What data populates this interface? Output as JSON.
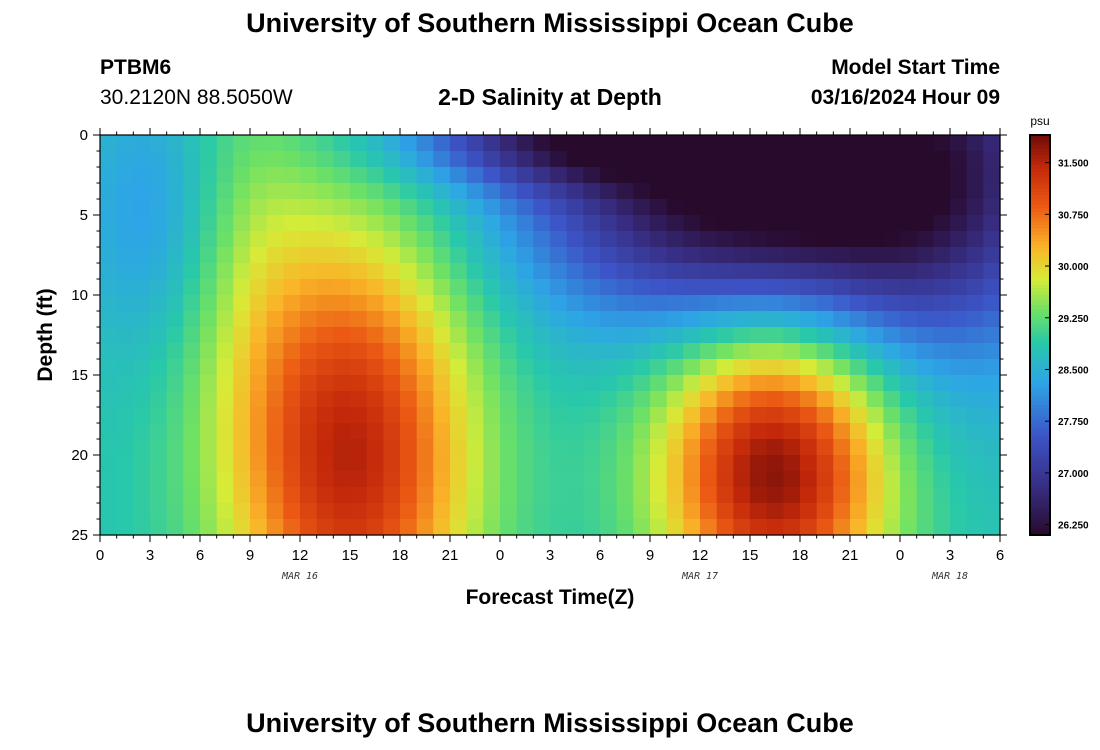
{
  "header": {
    "title": "University of Southern Mississippi Ocean Cube",
    "station_id": "PTBM6",
    "station_coords": "30.2120N  88.5050W",
    "plot_title": "2-D Salinity at Depth",
    "model_start_label": "Model Start Time",
    "model_start_value": "03/16/2024 Hour 09"
  },
  "footer": {
    "title": "University of Southern Mississippi Ocean Cube"
  },
  "chart_data": {
    "type": "heatmap",
    "title": "2-D Salinity at Depth",
    "xlabel": "Forecast Time(Z)",
    "ylabel": "Depth (ft)",
    "x_ticks": [
      "0",
      "3",
      "6",
      "9",
      "12",
      "15",
      "18",
      "21",
      "0",
      "3",
      "6",
      "9",
      "12",
      "15",
      "18",
      "21",
      "0",
      "3",
      "6"
    ],
    "x_range_hours": [
      0,
      54
    ],
    "date_labels": [
      {
        "label": "MAR 16",
        "hour": 12
      },
      {
        "label": "MAR 17",
        "hour": 36
      },
      {
        "label": "MAR 18",
        "hour": 51
      }
    ],
    "y_ticks": [
      "0",
      "5",
      "10",
      "15",
      "20",
      "25"
    ],
    "y_range_ft": [
      0,
      25
    ],
    "colorbar": {
      "unit": "psu",
      "labels": [
        "31.500",
        "30.750",
        "30.000",
        "29.250",
        "28.500",
        "27.750",
        "27.000",
        "26.250"
      ],
      "min": 26.1,
      "max": 31.9
    },
    "grid": {
      "rows": 25,
      "cols": 54,
      "description": "salinity (psu) sampled at each forecast hour and each foot of depth"
    }
  }
}
